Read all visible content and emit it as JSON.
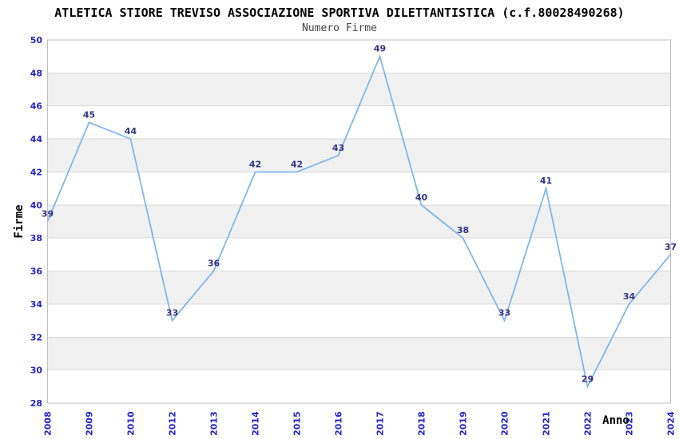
{
  "chart_data": {
    "type": "line",
    "title": "ATLETICA STIORE TREVISO ASSOCIAZIONE SPORTIVA DILETTANTISTICA (c.f.80028490268)",
    "subtitle": "Numero Firme",
    "xlabel": "Anno",
    "ylabel": "Firme",
    "categories": [
      "2008",
      "2009",
      "2010",
      "2012",
      "2013",
      "2014",
      "2015",
      "2016",
      "2017",
      "2018",
      "2019",
      "2020",
      "2021",
      "2022",
      "2023",
      "2024"
    ],
    "values": [
      39,
      45,
      44,
      33,
      36,
      42,
      42,
      43,
      49,
      40,
      38,
      33,
      41,
      29,
      34,
      37
    ],
    "ylim": [
      28,
      50
    ],
    "ytick_step": 2,
    "yticks": [
      28,
      30,
      32,
      34,
      36,
      38,
      40,
      42,
      44,
      46,
      48,
      50
    ],
    "grid": "horizontal gridlines with alternating shaded bands",
    "legend": "none",
    "data_labels": "shown above each point",
    "x_tick_rotation": -90,
    "colors": {
      "line": "#7cb5ec",
      "tick_label": "#2222cc",
      "data_label": "#333387",
      "band": "#f0f0f0",
      "gridline": "#d9d9d9",
      "border": "#c0c0c0",
      "title": "#000000",
      "subtitle": "#444444",
      "axis_title": "#000000",
      "background": "#ffffff"
    }
  }
}
